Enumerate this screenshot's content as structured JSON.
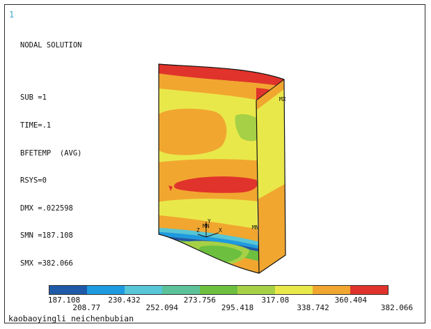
{
  "window_number": "1",
  "info_lines": {
    "title": "NODAL SOLUTION",
    "sub": "SUB =1",
    "time": "TIME=.1",
    "bfetemp": "BFETEMP  (AVG)",
    "rsys": "RSYS=0",
    "dmx": "DMX =.022598",
    "smn": "SMN =187.108",
    "smx": "SMX =382.066"
  },
  "model_labels": {
    "mx_top": "MX",
    "mn": "MN",
    "axis_y": "Y",
    "axis_z": "Z",
    "axis_x": "X",
    "axis_mn2": "MN"
  },
  "legend": {
    "colors": [
      "#1f5aa8",
      "#1e9be0",
      "#57c6d6",
      "#5cc29a",
      "#6cbf3f",
      "#a6d146",
      "#e9e84a",
      "#f1a630",
      "#e0332b"
    ],
    "tick_values": [
      "187.108",
      "208.77",
      "230.432",
      "252.094",
      "273.756",
      "295.418",
      "317.08",
      "338.742",
      "360.404",
      "382.066"
    ]
  },
  "footer_label": "kaobaoyingli_neichenbubian"
}
